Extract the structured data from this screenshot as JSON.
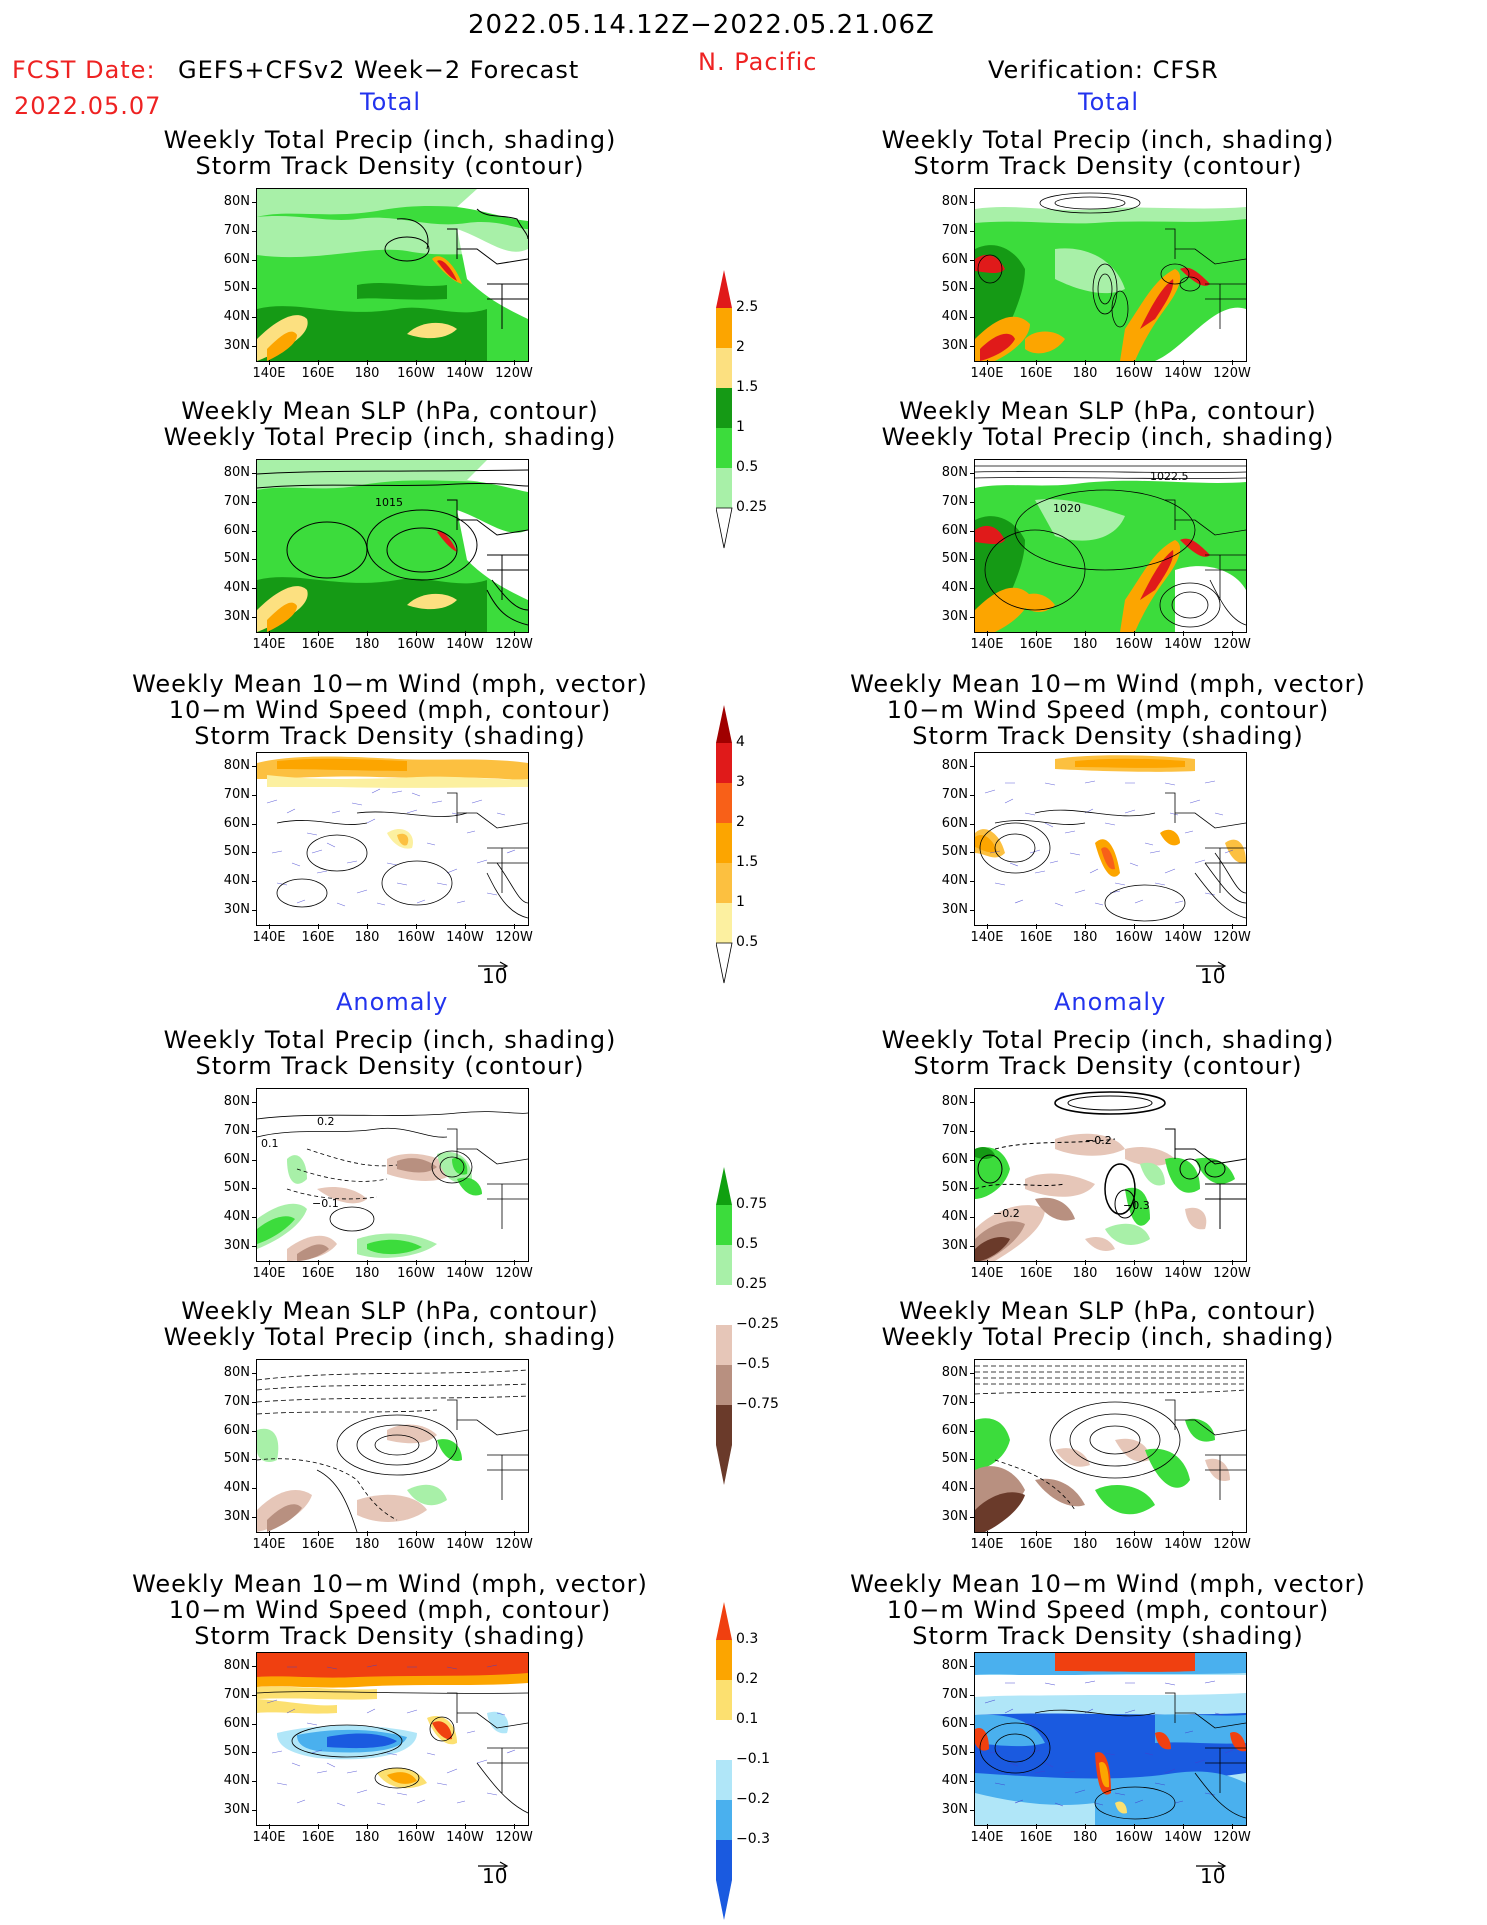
{
  "header": {
    "date_range": "2022.05.14.12Z−2022.05.21.06Z",
    "fcst_prefix": "FCST Date:",
    "fcst_model": "GEFS+CFSv2 Week−2 Forecast",
    "fcst_date": "2022.05.07",
    "region": "N. Pacific",
    "verification": "Verification: CFSR"
  },
  "sections": {
    "total": "Total",
    "anomaly": "Anomaly"
  },
  "panel_titles": {
    "precip_storm": [
      "Weekly Total Precip (inch, shading)",
      "Storm Track Density (contour)"
    ],
    "slp_precip": [
      "Weekly Mean SLP (hPa, contour)",
      "Weekly Total Precip (inch, shading)"
    ],
    "wind_storm": [
      "Weekly Mean 10−m Wind (mph, vector)",
      "10−m Wind Speed (mph, contour)",
      "Storm Track Density (shading)"
    ]
  },
  "axes": {
    "lat_ticks": [
      "80N",
      "70N",
      "60N",
      "50N",
      "40N",
      "30N"
    ],
    "lon_ticks": [
      "140E",
      "160E",
      "180",
      "160W",
      "140W",
      "120W"
    ]
  },
  "vector_ref": "10",
  "contour_labels": {
    "fc_total_slp": "1015",
    "obs_total_slp_a": "1022.5",
    "obs_total_slp_b": "1020",
    "fc_anom_storm_a": "0.2",
    "fc_anom_storm_b": "0.1",
    "fc_anom_storm_c": "−0.1",
    "obs_anom_storm_a": "−0.2",
    "obs_anom_storm_b": "−0.3",
    "obs_anom_storm_c": "−0.2"
  },
  "colorbars": {
    "total_precip": {
      "labels": [
        "2.5",
        "2",
        "1.5",
        "1",
        "0.5",
        "0.25"
      ],
      "colors": [
        "#e01a1a",
        "#fca500",
        "#fce080",
        "#159a15",
        "#3cdc3c",
        "#a8f0a8"
      ]
    },
    "total_storm": {
      "labels": [
        "4",
        "3",
        "2",
        "1.5",
        "1",
        "0.5"
      ],
      "colors": [
        "#a00000",
        "#e01a1a",
        "#f86018",
        "#fca500",
        "#fcc040",
        "#fcf0a0"
      ]
    },
    "anom_precip": {
      "labels": [
        "0.75",
        "0.5",
        "0.25",
        "−0.25",
        "−0.5",
        "−0.75"
      ],
      "colors": [
        "#10a010",
        "#3cdc3c",
        "#a8f0a8",
        "#ffffff",
        "#e6c6b8",
        "#b89080",
        "#6a3a2a"
      ]
    },
    "anom_storm": {
      "labels": [
        "0.3",
        "0.2",
        "0.1",
        "−0.1",
        "−0.2",
        "−0.3"
      ],
      "colors": [
        "#f04010",
        "#fca500",
        "#fce070",
        "#ffffff",
        "#b0e6f8",
        "#4ab0ee",
        "#1a5ae0"
      ]
    }
  }
}
